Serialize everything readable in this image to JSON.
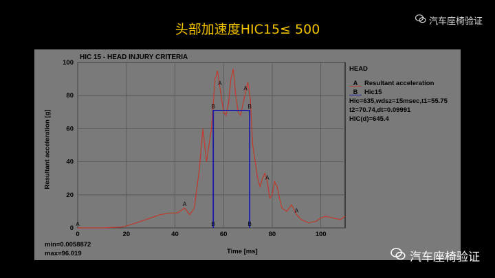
{
  "slide": {
    "title": "头部加速度HIC15≤ 500",
    "watermark_top": "汽车座椅验证",
    "watermark_bottom": "汽车座椅验证",
    "watermark_icon": "wechat-icon"
  },
  "colors": {
    "title": "#f2c200",
    "series_a": "#c0392b",
    "series_b": "#1a1aa8",
    "panel": "#7a7a7a"
  },
  "chart_data": {
    "type": "line",
    "title": "HIC 15 - HEAD INJURY CRITERIA",
    "xlabel": "Time [ms]",
    "ylabel": "Resultant acceleration [g]",
    "xlim": [
      0,
      110
    ],
    "ylim": [
      0,
      100
    ],
    "xticks": [
      0,
      20,
      40,
      60,
      80,
      100
    ],
    "yticks": [
      0,
      20,
      40,
      60,
      80,
      100
    ],
    "grid": true,
    "legend_title": "HEAD",
    "legend_position": "right",
    "series": [
      {
        "name": "Resultant acceleration",
        "marker": "A",
        "x": [
          0,
          10,
          18,
          22,
          26,
          30,
          34,
          38,
          41,
          44,
          46,
          48,
          50,
          51.5,
          53,
          55,
          56.5,
          57.5,
          58.5,
          60,
          61,
          62,
          63,
          64,
          65,
          66,
          67,
          69,
          70,
          71,
          72,
          73,
          74,
          75,
          76,
          77,
          78,
          79,
          80,
          81,
          82,
          83,
          84,
          86,
          88,
          90,
          92,
          95,
          98,
          100,
          102,
          105,
          108,
          110
        ],
        "y": [
          0,
          0,
          0.5,
          2,
          4,
          6,
          8,
          9,
          9,
          12,
          8,
          12,
          35,
          60,
          40,
          60,
          90,
          95,
          85,
          70,
          68,
          75,
          90,
          96,
          80,
          70,
          68,
          82,
          88,
          78,
          50,
          40,
          30,
          25,
          30,
          33,
          28,
          18,
          20,
          28,
          25,
          18,
          12,
          10,
          14,
          8,
          5,
          3,
          4,
          6,
          7,
          6,
          5,
          7
        ]
      },
      {
        "name": "Hic15",
        "marker": "B",
        "x": [
          55.75,
          55.75,
          70.74,
          70.74
        ],
        "y": [
          0,
          71,
          71,
          0
        ]
      }
    ],
    "annotations": [
      "Hic=635,wdsz=15msec,t1=55.75",
      "t2=70.74,dt=0.09991",
      "HIC(d)=645.4"
    ],
    "stats": {
      "min": "min=0.0058872",
      "max": "max=96.019"
    }
  }
}
